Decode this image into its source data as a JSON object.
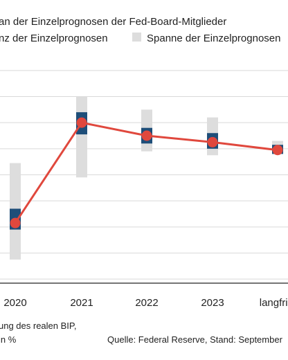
{
  "legend": {
    "median_label": "an der Einzelprognosen der Fed-Board-Mitglieder",
    "central_label": "nz der Einzelprognosen",
    "range_label": "Spanne der Einzelprognosen"
  },
  "footnote": {
    "line1": "ung des realen BIP,",
    "line2": "in %",
    "source": "Quelle: Federal Reserve, Stand: September"
  },
  "colors": {
    "median_line": "#e0483d",
    "central_bar": "#1e4e79",
    "range_bar": "#dddddd"
  },
  "chart_data": {
    "type": "line",
    "categories": [
      "2020",
      "2021",
      "2022",
      "2023",
      "langfrist"
    ],
    "ylim": [
      -9,
      9
    ],
    "y_gridlines": [
      -8,
      -6,
      -4,
      -2,
      0,
      2,
      4,
      6,
      8
    ],
    "series": [
      {
        "name": "an der Einzelprognosen der Fed-Board-Mitglieder",
        "values": [
          -3.7,
          4.0,
          3.0,
          2.5,
          1.9
        ]
      }
    ],
    "central_tendency": [
      [
        -4.2,
        -2.6
      ],
      [
        3.1,
        4.8
      ],
      [
        2.4,
        3.6
      ],
      [
        2.0,
        3.2
      ],
      [
        1.6,
        2.3
      ]
    ],
    "range": [
      [
        -6.5,
        0.9
      ],
      [
        -0.2,
        6.0
      ],
      [
        1.8,
        5.0
      ],
      [
        1.5,
        4.4
      ],
      [
        1.6,
        2.6
      ]
    ]
  }
}
